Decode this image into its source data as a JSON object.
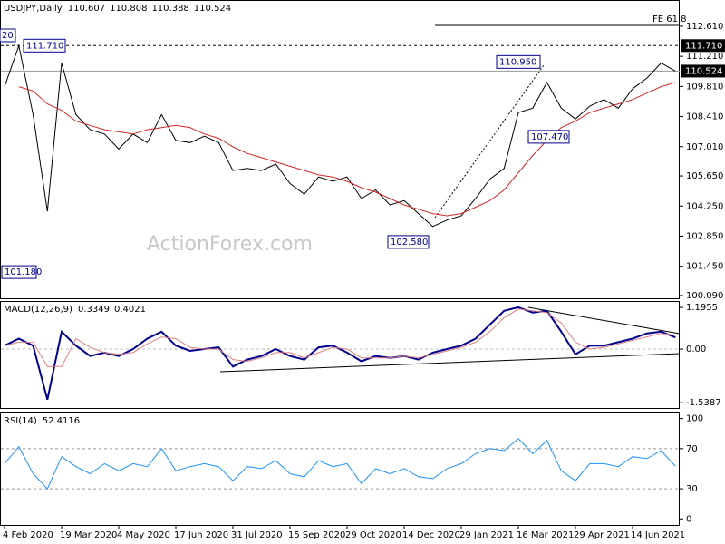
{
  "chart_data": [
    {
      "type": "line",
      "title": "USDJPY,Daily",
      "ohlc": [
        110.607,
        110.808,
        110.388,
        110.524
      ],
      "watermark": "ActionForex.com",
      "categories": [
        "4 Feb 2020",
        null,
        null,
        null,
        "19 Mar 2020",
        null,
        null,
        null,
        "4 May 2020",
        null,
        null,
        null,
        "17 Jun 2020",
        null,
        null,
        null,
        "31 Jul 2020",
        null,
        null,
        null,
        "15 Sep 2020",
        null,
        null,
        null,
        "29 Oct 2020",
        null,
        null,
        null,
        "14 Dec 2020",
        null,
        null,
        null,
        "29 Jan 2021",
        null,
        null,
        null,
        "16 Mar 2021",
        null,
        null,
        null,
        "29 Apr 2021",
        null,
        null,
        null,
        "14 Jun 2021",
        null,
        null,
        null
      ],
      "series": [
        {
          "color": "#000000",
          "values": [
            109.8,
            111.7,
            108.5,
            104.0,
            110.9,
            108.5,
            107.8,
            107.6,
            106.9,
            107.6,
            107.2,
            108.5,
            107.3,
            107.2,
            107.5,
            107.2,
            105.9,
            106.0,
            105.9,
            106.2,
            105.3,
            104.8,
            105.6,
            105.4,
            105.6,
            104.6,
            105.0,
            104.3,
            104.5,
            103.9,
            103.3,
            103.6,
            103.8,
            104.6,
            105.5,
            106.0,
            108.6,
            108.8,
            110.0,
            108.8,
            108.3,
            108.9,
            109.2,
            108.8,
            109.7,
            110.2,
            110.9,
            110.524
          ]
        },
        {
          "color": "#d62728",
          "values": [
            null,
            109.8,
            109.6,
            109.0,
            108.7,
            108.2,
            108.0,
            107.8,
            107.7,
            107.6,
            107.8,
            107.9,
            108.0,
            107.9,
            107.6,
            107.4,
            107.0,
            106.7,
            106.5,
            106.3,
            106.1,
            105.9,
            105.7,
            105.6,
            105.4,
            105.1,
            104.9,
            104.6,
            104.3,
            104.1,
            103.9,
            103.8,
            103.9,
            104.2,
            104.5,
            105.0,
            105.8,
            106.6,
            107.3,
            107.9,
            108.2,
            108.6,
            108.8,
            109.0,
            109.2,
            109.5,
            109.8,
            110.0
          ]
        }
      ],
      "ylim": [
        99.92,
        113.83
      ],
      "yticks": [
        {
          "value": 112.61,
          "label": "112.610"
        },
        {
          "value": 111.21,
          "label": "111.210"
        },
        {
          "value": 109.81,
          "label": "109.810"
        },
        {
          "value": 108.41,
          "label": "108.410"
        },
        {
          "value": 107.01,
          "label": "107.010"
        },
        {
          "value": 105.65,
          "label": "105.650"
        },
        {
          "value": 104.25,
          "label": "104.250"
        },
        {
          "value": 102.85,
          "label": "102.850"
        },
        {
          "value": 101.45,
          "label": "101.450"
        },
        {
          "value": 100.09,
          "label": "100.090"
        }
      ],
      "annotations": [
        {
          "value": 111.71,
          "label": "111.710"
        },
        {
          "value": 101.18,
          "label": "101.180"
        },
        {
          "value": 110.95,
          "label": "110.950"
        },
        {
          "value": 107.47,
          "label": "107.470"
        },
        {
          "value": 102.58,
          "label": "102.580"
        }
      ],
      "clipped_label": "20",
      "high_level": {
        "value": 111.71,
        "label": "111.710"
      },
      "last_price": {
        "value": 110.524,
        "label": "110.524"
      },
      "fe_level": {
        "value": 112.65,
        "text": "FE 61.8"
      }
    },
    {
      "type": "line",
      "title": "MACD(12,26,9)",
      "readings": [
        0.3349,
        0.4021
      ],
      "series": [
        {
          "color": "#00008b",
          "values": [
            0.1,
            0.3,
            0.1,
            -1.45,
            0.5,
            0.1,
            -0.2,
            -0.1,
            -0.2,
            0.0,
            0.3,
            0.5,
            0.1,
            -0.05,
            0.0,
            0.05,
            -0.5,
            -0.3,
            -0.2,
            0.0,
            -0.2,
            -0.3,
            0.05,
            0.1,
            -0.1,
            -0.35,
            -0.2,
            -0.25,
            -0.2,
            -0.3,
            -0.1,
            0.0,
            0.1,
            0.3,
            0.7,
            1.1,
            1.2,
            1.05,
            1.1,
            0.5,
            -0.15,
            0.1,
            0.1,
            0.2,
            0.3,
            0.45,
            0.5,
            0.3349
          ]
        },
        {
          "color": "#e08080",
          "values": [
            0.1,
            0.2,
            0.2,
            -0.5,
            -0.5,
            0.3,
            0.05,
            -0.1,
            -0.15,
            -0.1,
            0.15,
            0.35,
            0.3,
            0.05,
            0.0,
            0.0,
            -0.3,
            -0.35,
            -0.25,
            -0.1,
            -0.1,
            -0.25,
            -0.1,
            0.05,
            0.0,
            -0.25,
            -0.25,
            -0.25,
            -0.2,
            -0.25,
            -0.15,
            -0.05,
            0.05,
            0.2,
            0.5,
            0.9,
            1.15,
            1.1,
            1.05,
            0.75,
            0.2,
            0.0,
            0.05,
            0.15,
            0.25,
            0.35,
            0.45,
            0.4021
          ]
        }
      ],
      "ylim": [
        -1.69,
        1.38
      ],
      "yticks": [
        1.1955,
        {
          "value": 0,
          "label": "0.00"
        },
        -1.5387
      ]
    },
    {
      "type": "line",
      "title": "RSI(14)",
      "readings": [
        52.4116
      ],
      "series": [
        {
          "color": "#1e90ff",
          "values": [
            55,
            72,
            45,
            30,
            62,
            52,
            45,
            55,
            48,
            55,
            52,
            70,
            48,
            52,
            55,
            52,
            38,
            52,
            50,
            58,
            45,
            42,
            58,
            52,
            55,
            35,
            50,
            45,
            50,
            42,
            40,
            50,
            55,
            65,
            70,
            68,
            80,
            65,
            78,
            48,
            38,
            55,
            55,
            52,
            62,
            60,
            68,
            52.4116
          ]
        }
      ],
      "ylim": [
        -7,
        106
      ],
      "yticks": [
        100,
        70,
        30,
        0
      ]
    }
  ]
}
